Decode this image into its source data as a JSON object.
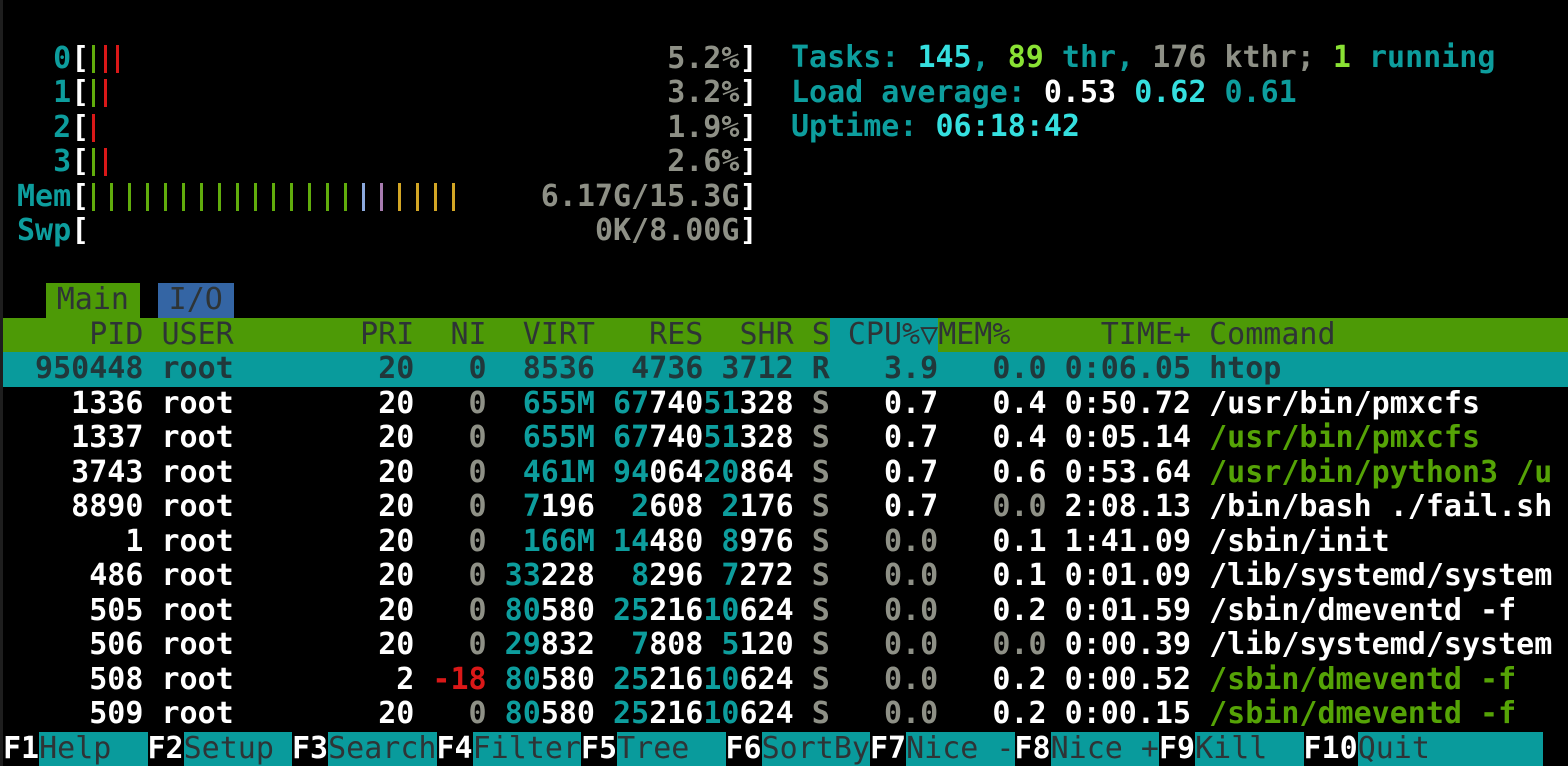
{
  "colors": {
    "bar_green": "#61ad0c",
    "bar_red": "#da1818",
    "bar_yellow": "#d3a625",
    "bar_blue": "#8ca9dd",
    "bar_purple": "#a87cb0",
    "accent_teal": "#099b9c",
    "header_green": "#4d9a06",
    "tab_blue": "#3465a4"
  },
  "meters": [
    {
      "label": "0",
      "value": "5.2%",
      "bars": [
        "green",
        "red",
        "red"
      ],
      "kind": "cpu"
    },
    {
      "label": "1",
      "value": "3.2%",
      "bars": [
        "green",
        "red"
      ],
      "kind": "cpu"
    },
    {
      "label": "2",
      "value": "1.9%",
      "bars": [
        "red"
      ],
      "kind": "cpu"
    },
    {
      "label": "3",
      "value": "2.6%",
      "bars": [
        "green",
        "red"
      ],
      "kind": "cpu"
    },
    {
      "label": "Mem",
      "value": "6.17G/15.3G",
      "bars": [
        "green",
        "green",
        "green",
        "green",
        "green",
        "green",
        "green",
        "green",
        "green",
        "green",
        "green",
        "green",
        "green",
        "green",
        "green",
        "blue",
        "purple",
        "yellow",
        "yellow",
        "yellow",
        "yellow"
      ],
      "kind": "mem"
    },
    {
      "label": "Swp",
      "value": "0K/8.00G",
      "bars": [],
      "kind": "mem"
    }
  ],
  "info": {
    "tasks": [
      {
        "t": "Tasks: ",
        "c": "cyan"
      },
      {
        "t": "145",
        "c": "bcyan"
      },
      {
        "t": ", ",
        "c": "cyan"
      },
      {
        "t": "89",
        "c": "bgreen"
      },
      {
        "t": " thr",
        "c": "cyan"
      },
      {
        "t": ", ",
        "c": "cyan"
      },
      {
        "t": "176 kthr",
        "c": "gray"
      },
      {
        "t": "; ",
        "c": "gray"
      },
      {
        "t": "1",
        "c": "bgreen"
      },
      {
        "t": " running",
        "c": "cyan"
      }
    ],
    "load": [
      {
        "t": "Load average: ",
        "c": "cyan"
      },
      {
        "t": "0.53 ",
        "c": "wht"
      },
      {
        "t": "0.62 ",
        "c": "bcyan"
      },
      {
        "t": "0.61",
        "c": "cyan"
      }
    ],
    "uptime": [
      {
        "t": "Uptime: ",
        "c": "cyan"
      },
      {
        "t": "06:18:42",
        "c": "bcyan"
      }
    ]
  },
  "tabs": [
    {
      "label": "Main",
      "active": true
    },
    {
      "label": "I/O",
      "active": false
    }
  ],
  "table": {
    "header": {
      "pid": "PID",
      "user": "USER",
      "pri": "PRI",
      "ni": "NI",
      "virt": "VIRT",
      "res": "RES",
      "shr": "SHR",
      "s": "S",
      "cpu": "CPU%▽",
      "mem": "MEM%",
      "time": "TIME+",
      "cmd": "Command"
    },
    "rows": [
      {
        "pid": "950448",
        "user": "root",
        "pri": "20",
        "ni": "0",
        "virt": "8536",
        "res": "4736",
        "shr": "3712",
        "s": "R",
        "cpu": "3.9",
        "mem": "0.0",
        "time": "0:06.05",
        "cmd": "htop",
        "cmd_color": "white",
        "selected": true
      },
      {
        "pid": "1336",
        "user": "root",
        "pri": "20",
        "ni": "0",
        "virt": "655M",
        "res": "67740",
        "shr": "51328",
        "s": "S",
        "cpu": "0.7",
        "mem": "0.4",
        "time": "0:50.72",
        "cmd": "/usr/bin/pmxcfs",
        "cmd_color": "white",
        "selected": false
      },
      {
        "pid": "1337",
        "user": "root",
        "pri": "20",
        "ni": "0",
        "virt": "655M",
        "res": "67740",
        "shr": "51328",
        "s": "S",
        "cpu": "0.7",
        "mem": "0.4",
        "time": "0:05.14",
        "cmd": "/usr/bin/pmxcfs",
        "cmd_color": "green",
        "selected": false
      },
      {
        "pid": "3743",
        "user": "root",
        "pri": "20",
        "ni": "0",
        "virt": "461M",
        "res": "94064",
        "shr": "20864",
        "s": "S",
        "cpu": "0.7",
        "mem": "0.6",
        "time": "0:53.64",
        "cmd": "/usr/bin/python3 /u",
        "cmd_color": "green",
        "selected": false
      },
      {
        "pid": "8890",
        "user": "root",
        "pri": "20",
        "ni": "0",
        "virt": "7196",
        "res": "2608",
        "shr": "2176",
        "s": "S",
        "cpu": "0.7",
        "mem": "0.0",
        "time": "2:08.13",
        "cmd": "/bin/bash ./fail.sh",
        "cmd_color": "white",
        "selected": false
      },
      {
        "pid": "1",
        "user": "root",
        "pri": "20",
        "ni": "0",
        "virt": "166M",
        "res": "14480",
        "shr": "8976",
        "s": "S",
        "cpu": "0.0",
        "mem": "0.1",
        "time": "1:41.09",
        "cmd": "/sbin/init",
        "cmd_color": "white",
        "selected": false
      },
      {
        "pid": "486",
        "user": "root",
        "pri": "20",
        "ni": "0",
        "virt": "33228",
        "res": "8296",
        "shr": "7272",
        "s": "S",
        "cpu": "0.0",
        "mem": "0.1",
        "time": "0:01.09",
        "cmd": "/lib/systemd/system",
        "cmd_color": "white",
        "selected": false
      },
      {
        "pid": "505",
        "user": "root",
        "pri": "20",
        "ni": "0",
        "virt": "80580",
        "res": "25216",
        "shr": "10624",
        "s": "S",
        "cpu": "0.0",
        "mem": "0.2",
        "time": "0:01.59",
        "cmd": "/sbin/dmeventd -f",
        "cmd_color": "white",
        "selected": false
      },
      {
        "pid": "506",
        "user": "root",
        "pri": "20",
        "ni": "0",
        "virt": "29832",
        "res": "7808",
        "shr": "5120",
        "s": "S",
        "cpu": "0.0",
        "mem": "0.0",
        "time": "0:00.39",
        "cmd": "/lib/systemd/system",
        "cmd_color": "white",
        "selected": false
      },
      {
        "pid": "508",
        "user": "root",
        "pri": "2",
        "ni": "-18",
        "virt": "80580",
        "res": "25216",
        "shr": "10624",
        "s": "S",
        "cpu": "0.0",
        "mem": "0.2",
        "time": "0:00.52",
        "cmd": "/sbin/dmeventd -f",
        "cmd_color": "green",
        "selected": false
      },
      {
        "pid": "509",
        "user": "root",
        "pri": "20",
        "ni": "0",
        "virt": "80580",
        "res": "25216",
        "shr": "10624",
        "s": "S",
        "cpu": "0.0",
        "mem": "0.2",
        "time": "0:00.15",
        "cmd": "/sbin/dmeventd -f",
        "cmd_color": "green",
        "selected": false
      }
    ]
  },
  "fkeys": [
    {
      "key": "F1",
      "label": "Help"
    },
    {
      "key": "F2",
      "label": "Setup"
    },
    {
      "key": "F3",
      "label": "Search"
    },
    {
      "key": "F4",
      "label": "Filter"
    },
    {
      "key": "F5",
      "label": "Tree"
    },
    {
      "key": "F6",
      "label": "SortBy"
    },
    {
      "key": "F7",
      "label": "Nice -"
    },
    {
      "key": "F8",
      "label": "Nice +"
    },
    {
      "key": "F9",
      "label": "Kill"
    },
    {
      "key": "F10",
      "label": "Quit"
    }
  ]
}
